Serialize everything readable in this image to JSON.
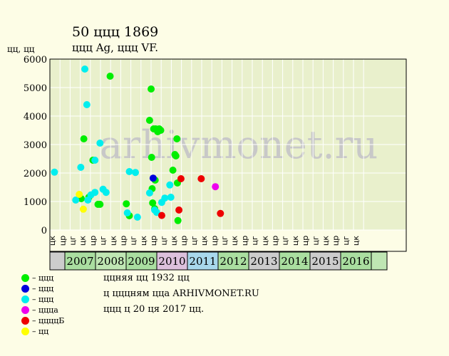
{
  "title": "50 ццц 1869",
  "subtitle": "ццц Ag, ццц VF.",
  "y_unit": "цц, цц",
  "watermark": "arhivmonet.ru",
  "notes": [
    "ццняя цц 1932 цц",
    "ц цццням цца ARHIVMONET.RU",
    "ццц ц 20 ця 2017 цц."
  ],
  "legend": [
    {
      "label": "– ццц",
      "color": "#00ee00"
    },
    {
      "label": "– ццц",
      "color": "#0000dd"
    },
    {
      "label": "– ццц",
      "color": "#00eeee"
    },
    {
      "label": "– ццца",
      "color": "#ee00ee"
    },
    {
      "label": "– ццццБ",
      "color": "#ee0000"
    },
    {
      "label": "– цц",
      "color": "#ffff00"
    }
  ],
  "colors": {
    "plot_bg": "#e9f0cc",
    "grid": "#ffffff",
    "watermark": "#c8c8c8"
  },
  "chart_data": {
    "type": "scatter",
    "ylim": [
      0,
      6000
    ],
    "yticks": [
      0,
      1000,
      2000,
      3000,
      4000,
      5000,
      6000
    ],
    "quarter_labels": [
      "цк",
      "цр",
      "цг",
      "цк",
      "цр",
      "цг",
      "цк",
      "цр",
      "цг",
      "цк",
      "цр",
      "цг",
      "цк",
      "цр",
      "цг",
      "цк",
      "цр",
      "цг",
      "цк",
      "цр",
      "цг",
      "цк",
      "цр",
      "цг",
      "цк",
      "цр",
      "цг",
      "цк",
      "цр",
      "цг",
      "цк"
    ],
    "years": [
      {
        "label": "",
        "color": "#cccccc"
      },
      {
        "label": "2007",
        "color": "#aadea0"
      },
      {
        "label": "2008",
        "color": "#bfe6b3"
      },
      {
        "label": "2009",
        "color": "#aadea0"
      },
      {
        "label": "2010",
        "color": "#dcc0dc"
      },
      {
        "label": "2011",
        "color": "#a8d8ec"
      },
      {
        "label": "2012",
        "color": "#aadea0"
      },
      {
        "label": "2013",
        "color": "#cccccc"
      },
      {
        "label": "2014",
        "color": "#aadea0"
      },
      {
        "label": "2015",
        "color": "#cccccc"
      },
      {
        "label": "2016",
        "color": "#aadea0"
      },
      {
        "label": "",
        "color": "#bfe6b3"
      }
    ],
    "series": [
      {
        "color": "#00ee00",
        "points": [
          [
            2.75,
            1100
          ],
          [
            3.5,
            1150
          ],
          [
            3.9,
            2450
          ],
          [
            4.4,
            900
          ],
          [
            4.6,
            900
          ],
          [
            5.6,
            5400
          ],
          [
            7.2,
            920
          ],
          [
            7.5,
            500
          ],
          [
            9.5,
            3850
          ],
          [
            9.65,
            4950
          ],
          [
            9.7,
            2550
          ],
          [
            9.75,
            1450
          ],
          [
            9.8,
            950
          ],
          [
            9.9,
            3550
          ],
          [
            10.0,
            750
          ],
          [
            10.05,
            1750
          ],
          [
            10.1,
            3550
          ],
          [
            10.3,
            3450
          ],
          [
            10.45,
            3550
          ],
          [
            10.6,
            3500
          ],
          [
            11.8,
            2100
          ],
          [
            12.0,
            2650
          ],
          [
            12.1,
            2600
          ],
          [
            12.2,
            3200
          ],
          [
            12.25,
            1650
          ],
          [
            12.3,
            330
          ],
          [
            3.0,
            3200
          ]
        ]
      },
      {
        "color": "#0000dd",
        "points": [
          [
            9.85,
            1820
          ]
        ]
      },
      {
        "color": "#00eeee",
        "points": [
          [
            0.1,
            2030
          ],
          [
            2.2,
            1050
          ],
          [
            2.7,
            2200
          ],
          [
            3.1,
            5650
          ],
          [
            3.3,
            4400
          ],
          [
            3.4,
            1050
          ],
          [
            3.7,
            1230
          ],
          [
            4.1,
            1320
          ],
          [
            4.1,
            2450
          ],
          [
            4.6,
            3050
          ],
          [
            4.9,
            1430
          ],
          [
            5.2,
            1320
          ],
          [
            7.3,
            600
          ],
          [
            7.5,
            2050
          ],
          [
            8.1,
            2020
          ],
          [
            8.3,
            450
          ],
          [
            9.5,
            1300
          ],
          [
            10.0,
            700
          ],
          [
            10.2,
            620
          ],
          [
            10.7,
            970
          ],
          [
            11.0,
            1120
          ],
          [
            11.5,
            1580
          ],
          [
            11.6,
            1150
          ]
        ]
      },
      {
        "color": "#ee00ee",
        "points": [
          [
            16.0,
            1520
          ]
        ]
      },
      {
        "color": "#ee0000",
        "points": [
          [
            10.7,
            510
          ],
          [
            12.4,
            700
          ],
          [
            12.6,
            1800
          ],
          [
            14.6,
            1800
          ],
          [
            16.5,
            580
          ]
        ]
      },
      {
        "color": "#ffff00",
        "points": [
          [
            2.55,
            1250
          ],
          [
            2.95,
            730
          ]
        ]
      }
    ]
  }
}
